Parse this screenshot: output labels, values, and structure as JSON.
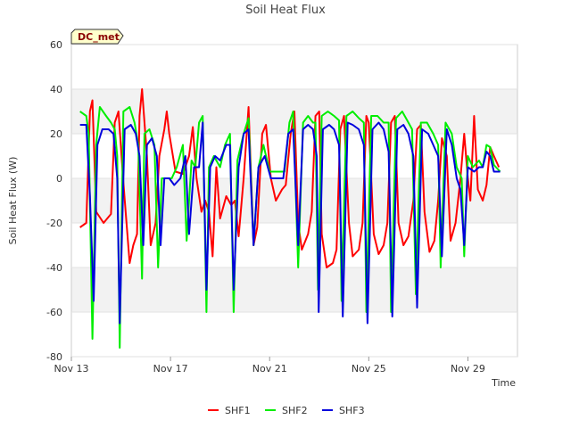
{
  "chart_data": {
    "type": "line",
    "title": "Soil Heat Flux",
    "xlabel": "Time",
    "ylabel": "Soil Heat Flux (W)",
    "badge": "DC_met",
    "ylim": [
      -80,
      60
    ],
    "yticks": [
      -80,
      -60,
      -40,
      -20,
      0,
      20,
      40,
      60
    ],
    "xlim": [
      13,
      31
    ],
    "xticks": [
      {
        "value": 13,
        "label": "Nov 13"
      },
      {
        "value": 17,
        "label": "Nov 17"
      },
      {
        "value": 21,
        "label": "Nov 21"
      },
      {
        "value": 25,
        "label": "Nov 25"
      },
      {
        "value": 29,
        "label": "Nov 29"
      }
    ],
    "legend_position": "bottom-center",
    "series": [
      {
        "name": "SHF1",
        "color": "#ff0000",
        "points": [
          [
            13.35,
            -22
          ],
          [
            13.6,
            -20
          ],
          [
            13.75,
            30
          ],
          [
            13.85,
            35
          ],
          [
            14.0,
            -15
          ],
          [
            14.3,
            -20
          ],
          [
            14.6,
            -16
          ],
          [
            14.75,
            25
          ],
          [
            14.9,
            30
          ],
          [
            15.1,
            -2
          ],
          [
            15.35,
            -38
          ],
          [
            15.5,
            -30
          ],
          [
            15.65,
            -25
          ],
          [
            15.75,
            28
          ],
          [
            15.85,
            40
          ],
          [
            16.05,
            10
          ],
          [
            16.2,
            -30
          ],
          [
            16.4,
            -20
          ],
          [
            16.55,
            10
          ],
          [
            16.75,
            22
          ],
          [
            16.85,
            30
          ],
          [
            16.95,
            20
          ],
          [
            17.2,
            3
          ],
          [
            17.5,
            2
          ],
          [
            17.75,
            10
          ],
          [
            17.9,
            23
          ],
          [
            18.05,
            0
          ],
          [
            18.25,
            -15
          ],
          [
            18.4,
            -10
          ],
          [
            18.55,
            -15
          ],
          [
            18.7,
            -35
          ],
          [
            18.85,
            5
          ],
          [
            19.0,
            -18
          ],
          [
            19.25,
            -8
          ],
          [
            19.45,
            -12
          ],
          [
            19.6,
            -10
          ],
          [
            19.75,
            -26
          ],
          [
            19.95,
            0
          ],
          [
            20.15,
            32
          ],
          [
            20.35,
            -30
          ],
          [
            20.5,
            -22
          ],
          [
            20.7,
            20
          ],
          [
            20.85,
            24
          ],
          [
            21.05,
            0
          ],
          [
            21.25,
            -10
          ],
          [
            21.5,
            -5
          ],
          [
            21.65,
            -3
          ],
          [
            21.85,
            20
          ],
          [
            22.0,
            30
          ],
          [
            22.15,
            -20
          ],
          [
            22.3,
            -32
          ],
          [
            22.55,
            -25
          ],
          [
            22.7,
            -15
          ],
          [
            22.85,
            28
          ],
          [
            23.0,
            30
          ],
          [
            23.1,
            -25
          ],
          [
            23.3,
            -40
          ],
          [
            23.55,
            -38
          ],
          [
            23.7,
            -32
          ],
          [
            23.85,
            22
          ],
          [
            24.0,
            28
          ],
          [
            24.2,
            -20
          ],
          [
            24.35,
            -35
          ],
          [
            24.6,
            -32
          ],
          [
            24.75,
            -20
          ],
          [
            24.9,
            28
          ],
          [
            25.0,
            25
          ],
          [
            25.2,
            -25
          ],
          [
            25.4,
            -34
          ],
          [
            25.6,
            -30
          ],
          [
            25.75,
            -20
          ],
          [
            25.9,
            25
          ],
          [
            26.05,
            28
          ],
          [
            26.2,
            -20
          ],
          [
            26.4,
            -30
          ],
          [
            26.6,
            -26
          ],
          [
            26.8,
            -10
          ],
          [
            26.95,
            22
          ],
          [
            27.1,
            24
          ],
          [
            27.25,
            -15
          ],
          [
            27.45,
            -33
          ],
          [
            27.65,
            -28
          ],
          [
            27.8,
            -10
          ],
          [
            27.95,
            18
          ],
          [
            28.15,
            10
          ],
          [
            28.3,
            -28
          ],
          [
            28.5,
            -20
          ],
          [
            28.7,
            0
          ],
          [
            28.85,
            20
          ],
          [
            29.0,
            0
          ],
          [
            29.1,
            -10
          ],
          [
            29.25,
            28
          ],
          [
            29.4,
            -5
          ],
          [
            29.6,
            -10
          ],
          [
            29.75,
            -3
          ],
          [
            29.9,
            14
          ],
          [
            30.05,
            10
          ],
          [
            30.25,
            5
          ]
        ]
      },
      {
        "name": "SHF2",
        "color": "#00ee00",
        "points": [
          [
            13.35,
            30
          ],
          [
            13.6,
            28
          ],
          [
            13.7,
            20
          ],
          [
            13.85,
            -72
          ],
          [
            14.0,
            15
          ],
          [
            14.15,
            32
          ],
          [
            14.4,
            28
          ],
          [
            14.6,
            25
          ],
          [
            14.75,
            22
          ],
          [
            14.85,
            10
          ],
          [
            14.95,
            -76
          ],
          [
            15.1,
            30
          ],
          [
            15.35,
            32
          ],
          [
            15.55,
            25
          ],
          [
            15.7,
            15
          ],
          [
            15.85,
            -45
          ],
          [
            15.95,
            20
          ],
          [
            16.15,
            22
          ],
          [
            16.35,
            15
          ],
          [
            16.5,
            -40
          ],
          [
            16.65,
            0
          ],
          [
            16.85,
            0
          ],
          [
            17.05,
            0
          ],
          [
            17.25,
            5
          ],
          [
            17.5,
            15
          ],
          [
            17.65,
            -28
          ],
          [
            17.85,
            8
          ],
          [
            18.0,
            5
          ],
          [
            18.15,
            25
          ],
          [
            18.3,
            28
          ],
          [
            18.45,
            -60
          ],
          [
            18.55,
            5
          ],
          [
            18.75,
            10
          ],
          [
            19.0,
            5
          ],
          [
            19.2,
            15
          ],
          [
            19.4,
            20
          ],
          [
            19.55,
            -60
          ],
          [
            19.7,
            8
          ],
          [
            19.95,
            20
          ],
          [
            20.15,
            27
          ],
          [
            20.35,
            -30
          ],
          [
            20.55,
            5
          ],
          [
            20.75,
            15
          ],
          [
            21.0,
            3
          ],
          [
            21.3,
            3
          ],
          [
            21.6,
            3
          ],
          [
            21.8,
            25
          ],
          [
            21.95,
            30
          ],
          [
            22.15,
            -40
          ],
          [
            22.35,
            25
          ],
          [
            22.55,
            28
          ],
          [
            22.75,
            25
          ],
          [
            22.85,
            25
          ],
          [
            22.95,
            -50
          ],
          [
            23.1,
            28
          ],
          [
            23.35,
            30
          ],
          [
            23.6,
            28
          ],
          [
            23.8,
            26
          ],
          [
            23.9,
            -55
          ],
          [
            24.1,
            28
          ],
          [
            24.35,
            30
          ],
          [
            24.6,
            27
          ],
          [
            24.8,
            25
          ],
          [
            24.9,
            -60
          ],
          [
            25.1,
            28
          ],
          [
            25.35,
            28
          ],
          [
            25.6,
            25
          ],
          [
            25.8,
            25
          ],
          [
            25.9,
            -60
          ],
          [
            26.1,
            27
          ],
          [
            26.35,
            30
          ],
          [
            26.55,
            26
          ],
          [
            26.75,
            22
          ],
          [
            26.9,
            -52
          ],
          [
            27.1,
            25
          ],
          [
            27.35,
            25
          ],
          [
            27.6,
            20
          ],
          [
            27.8,
            15
          ],
          [
            27.9,
            -40
          ],
          [
            28.1,
            25
          ],
          [
            28.35,
            20
          ],
          [
            28.55,
            5
          ],
          [
            28.75,
            0
          ],
          [
            28.85,
            -35
          ],
          [
            29.0,
            10
          ],
          [
            29.2,
            5
          ],
          [
            29.45,
            8
          ],
          [
            29.6,
            5
          ],
          [
            29.75,
            15
          ],
          [
            29.9,
            14
          ],
          [
            30.05,
            6
          ],
          [
            30.3,
            3
          ]
        ]
      },
      {
        "name": "SHF3",
        "color": "#0000dd",
        "points": [
          [
            13.35,
            24
          ],
          [
            13.6,
            24
          ],
          [
            13.75,
            -8
          ],
          [
            13.9,
            -55
          ],
          [
            14.05,
            15
          ],
          [
            14.25,
            22
          ],
          [
            14.5,
            22
          ],
          [
            14.7,
            20
          ],
          [
            14.85,
            0
          ],
          [
            14.95,
            -65
          ],
          [
            15.15,
            22
          ],
          [
            15.4,
            24
          ],
          [
            15.6,
            20
          ],
          [
            15.75,
            10
          ],
          [
            15.9,
            -30
          ],
          [
            16.05,
            15
          ],
          [
            16.25,
            18
          ],
          [
            16.45,
            10
          ],
          [
            16.6,
            -30
          ],
          [
            16.75,
            0
          ],
          [
            16.95,
            0
          ],
          [
            17.15,
            -3
          ],
          [
            17.4,
            0
          ],
          [
            17.6,
            10
          ],
          [
            17.75,
            -25
          ],
          [
            17.95,
            5
          ],
          [
            18.15,
            5
          ],
          [
            18.3,
            25
          ],
          [
            18.45,
            -50
          ],
          [
            18.6,
            5
          ],
          [
            18.8,
            10
          ],
          [
            19.0,
            8
          ],
          [
            19.25,
            15
          ],
          [
            19.4,
            15
          ],
          [
            19.55,
            -50
          ],
          [
            19.75,
            5
          ],
          [
            19.95,
            20
          ],
          [
            20.15,
            22
          ],
          [
            20.35,
            -30
          ],
          [
            20.55,
            5
          ],
          [
            20.8,
            10
          ],
          [
            21.05,
            0
          ],
          [
            21.3,
            0
          ],
          [
            21.55,
            0
          ],
          [
            21.75,
            20
          ],
          [
            21.95,
            22
          ],
          [
            22.15,
            -30
          ],
          [
            22.35,
            22
          ],
          [
            22.55,
            24
          ],
          [
            22.75,
            22
          ],
          [
            22.9,
            10
          ],
          [
            22.98,
            -60
          ],
          [
            23.15,
            22
          ],
          [
            23.4,
            24
          ],
          [
            23.6,
            22
          ],
          [
            23.8,
            15
          ],
          [
            23.95,
            -62
          ],
          [
            24.15,
            25
          ],
          [
            24.35,
            24
          ],
          [
            24.6,
            22
          ],
          [
            24.8,
            15
          ],
          [
            24.95,
            -65
          ],
          [
            25.15,
            22
          ],
          [
            25.4,
            25
          ],
          [
            25.6,
            22
          ],
          [
            25.8,
            12
          ],
          [
            25.95,
            -62
          ],
          [
            26.15,
            22
          ],
          [
            26.4,
            24
          ],
          [
            26.6,
            20
          ],
          [
            26.8,
            10
          ],
          [
            26.95,
            -58
          ],
          [
            27.15,
            22
          ],
          [
            27.4,
            20
          ],
          [
            27.6,
            15
          ],
          [
            27.8,
            10
          ],
          [
            27.95,
            -35
          ],
          [
            28.15,
            22
          ],
          [
            28.35,
            15
          ],
          [
            28.55,
            0
          ],
          [
            28.7,
            -5
          ],
          [
            28.85,
            -30
          ],
          [
            29.0,
            5
          ],
          [
            29.25,
            3
          ],
          [
            29.45,
            5
          ],
          [
            29.6,
            5
          ],
          [
            29.75,
            12
          ],
          [
            29.9,
            10
          ],
          [
            30.05,
            3
          ],
          [
            30.3,
            3
          ]
        ]
      }
    ]
  }
}
